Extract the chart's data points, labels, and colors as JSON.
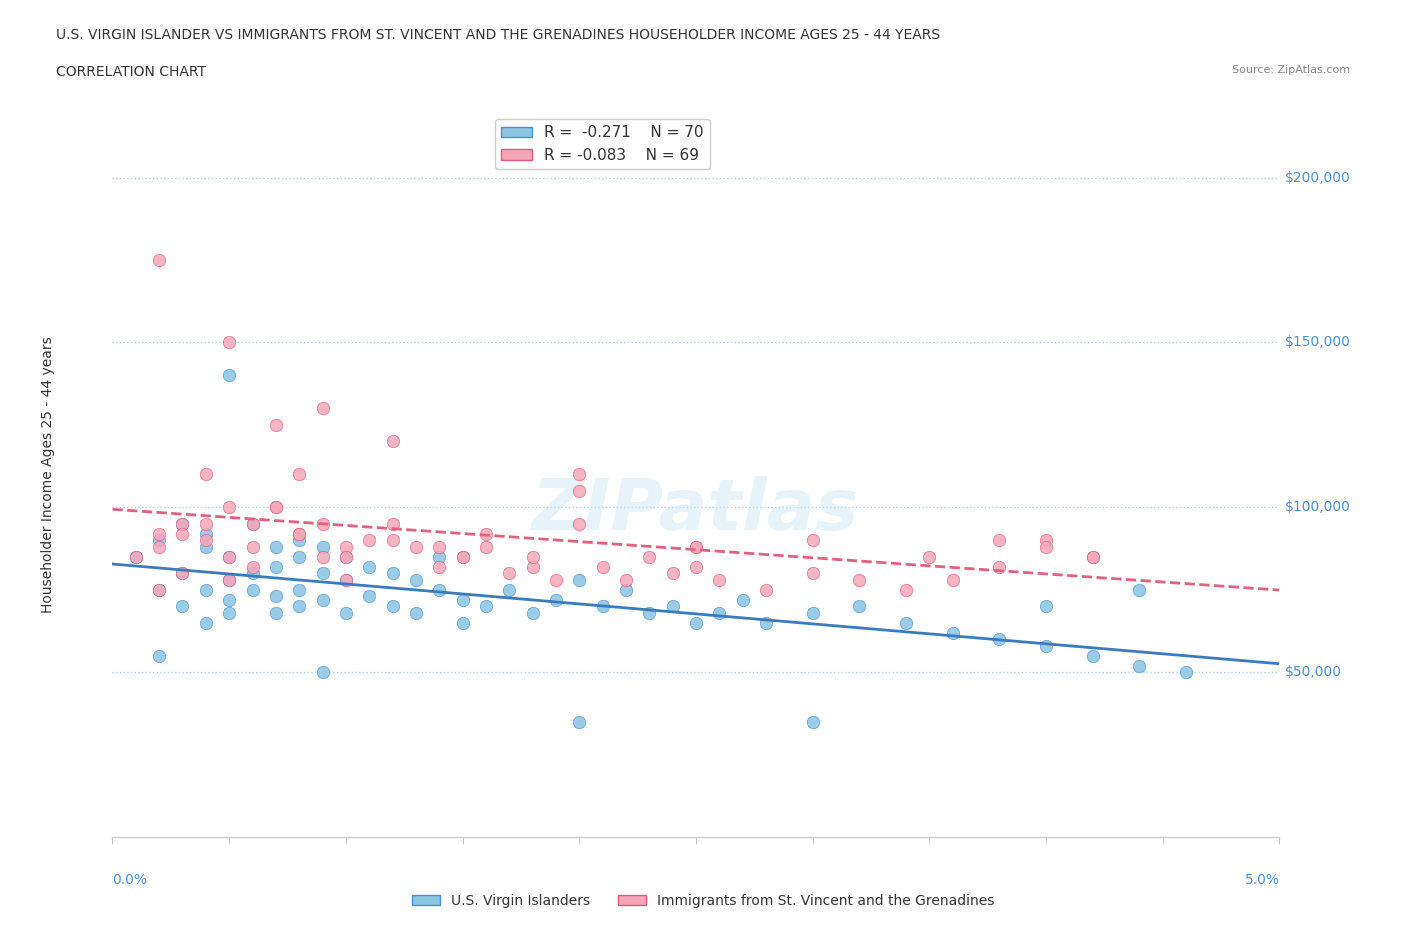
{
  "title_line1": "U.S. VIRGIN ISLANDER VS IMMIGRANTS FROM ST. VINCENT AND THE GRENADINES HOUSEHOLDER INCOME AGES 25 - 44 YEARS",
  "title_line2": "CORRELATION CHART",
  "source": "Source: ZipAtlas.com",
  "ylabel": "Householder Income Ages 25 - 44 years",
  "xlim": [
    0.0,
    0.05
  ],
  "ylim": [
    0,
    220000
  ],
  "watermark": "ZIPatlas",
  "legend_r1": "R =  -0.271",
  "legend_n1": "N = 70",
  "legend_r2": "R = -0.083",
  "legend_n2": "N = 69",
  "color_blue": "#89c4e1",
  "color_pink": "#f4a7b9",
  "color_blue_dark": "#4a90d9",
  "color_pink_dark": "#e05a7a",
  "line_color_blue": "#3a7bbf",
  "line_color_pink": "#e06080",
  "blue_scatter_x": [
    0.001,
    0.002,
    0.002,
    0.003,
    0.003,
    0.003,
    0.004,
    0.004,
    0.004,
    0.004,
    0.005,
    0.005,
    0.005,
    0.005,
    0.006,
    0.006,
    0.006,
    0.007,
    0.007,
    0.007,
    0.007,
    0.008,
    0.008,
    0.008,
    0.008,
    0.009,
    0.009,
    0.009,
    0.01,
    0.01,
    0.01,
    0.011,
    0.011,
    0.012,
    0.012,
    0.013,
    0.013,
    0.014,
    0.015,
    0.015,
    0.016,
    0.017,
    0.018,
    0.019,
    0.02,
    0.021,
    0.022,
    0.023,
    0.024,
    0.025,
    0.026,
    0.027,
    0.028,
    0.03,
    0.032,
    0.034,
    0.036,
    0.038,
    0.04,
    0.042,
    0.044,
    0.044,
    0.046,
    0.002,
    0.005,
    0.009,
    0.014,
    0.02,
    0.03,
    0.04
  ],
  "blue_scatter_y": [
    85000,
    90000,
    75000,
    95000,
    80000,
    70000,
    88000,
    75000,
    65000,
    92000,
    85000,
    78000,
    72000,
    68000,
    95000,
    80000,
    75000,
    88000,
    82000,
    73000,
    68000,
    90000,
    85000,
    75000,
    70000,
    88000,
    80000,
    72000,
    85000,
    78000,
    68000,
    82000,
    73000,
    80000,
    70000,
    78000,
    68000,
    75000,
    72000,
    65000,
    70000,
    75000,
    68000,
    72000,
    78000,
    70000,
    75000,
    68000,
    70000,
    65000,
    68000,
    72000,
    65000,
    68000,
    70000,
    65000,
    62000,
    60000,
    58000,
    55000,
    52000,
    75000,
    50000,
    55000,
    140000,
    50000,
    85000,
    35000,
    35000,
    70000
  ],
  "pink_scatter_x": [
    0.001,
    0.002,
    0.002,
    0.003,
    0.003,
    0.004,
    0.004,
    0.005,
    0.005,
    0.005,
    0.006,
    0.006,
    0.007,
    0.007,
    0.008,
    0.008,
    0.009,
    0.009,
    0.01,
    0.01,
    0.011,
    0.012,
    0.013,
    0.014,
    0.015,
    0.016,
    0.017,
    0.018,
    0.019,
    0.02,
    0.021,
    0.022,
    0.023,
    0.024,
    0.025,
    0.026,
    0.028,
    0.03,
    0.032,
    0.034,
    0.036,
    0.038,
    0.04,
    0.042,
    0.002,
    0.004,
    0.006,
    0.008,
    0.01,
    0.012,
    0.014,
    0.016,
    0.018,
    0.02,
    0.025,
    0.03,
    0.035,
    0.04,
    0.003,
    0.007,
    0.015,
    0.025,
    0.038,
    0.042,
    0.002,
    0.005,
    0.009,
    0.012,
    0.02
  ],
  "pink_scatter_y": [
    85000,
    92000,
    75000,
    95000,
    80000,
    110000,
    90000,
    100000,
    85000,
    78000,
    95000,
    82000,
    125000,
    100000,
    110000,
    92000,
    95000,
    85000,
    88000,
    78000,
    90000,
    95000,
    88000,
    82000,
    85000,
    88000,
    80000,
    82000,
    78000,
    110000,
    82000,
    78000,
    85000,
    80000,
    82000,
    78000,
    75000,
    80000,
    78000,
    75000,
    78000,
    82000,
    90000,
    85000,
    88000,
    95000,
    88000,
    92000,
    85000,
    90000,
    88000,
    92000,
    85000,
    95000,
    88000,
    90000,
    85000,
    88000,
    92000,
    100000,
    85000,
    88000,
    90000,
    85000,
    175000,
    150000,
    130000,
    120000,
    105000
  ]
}
